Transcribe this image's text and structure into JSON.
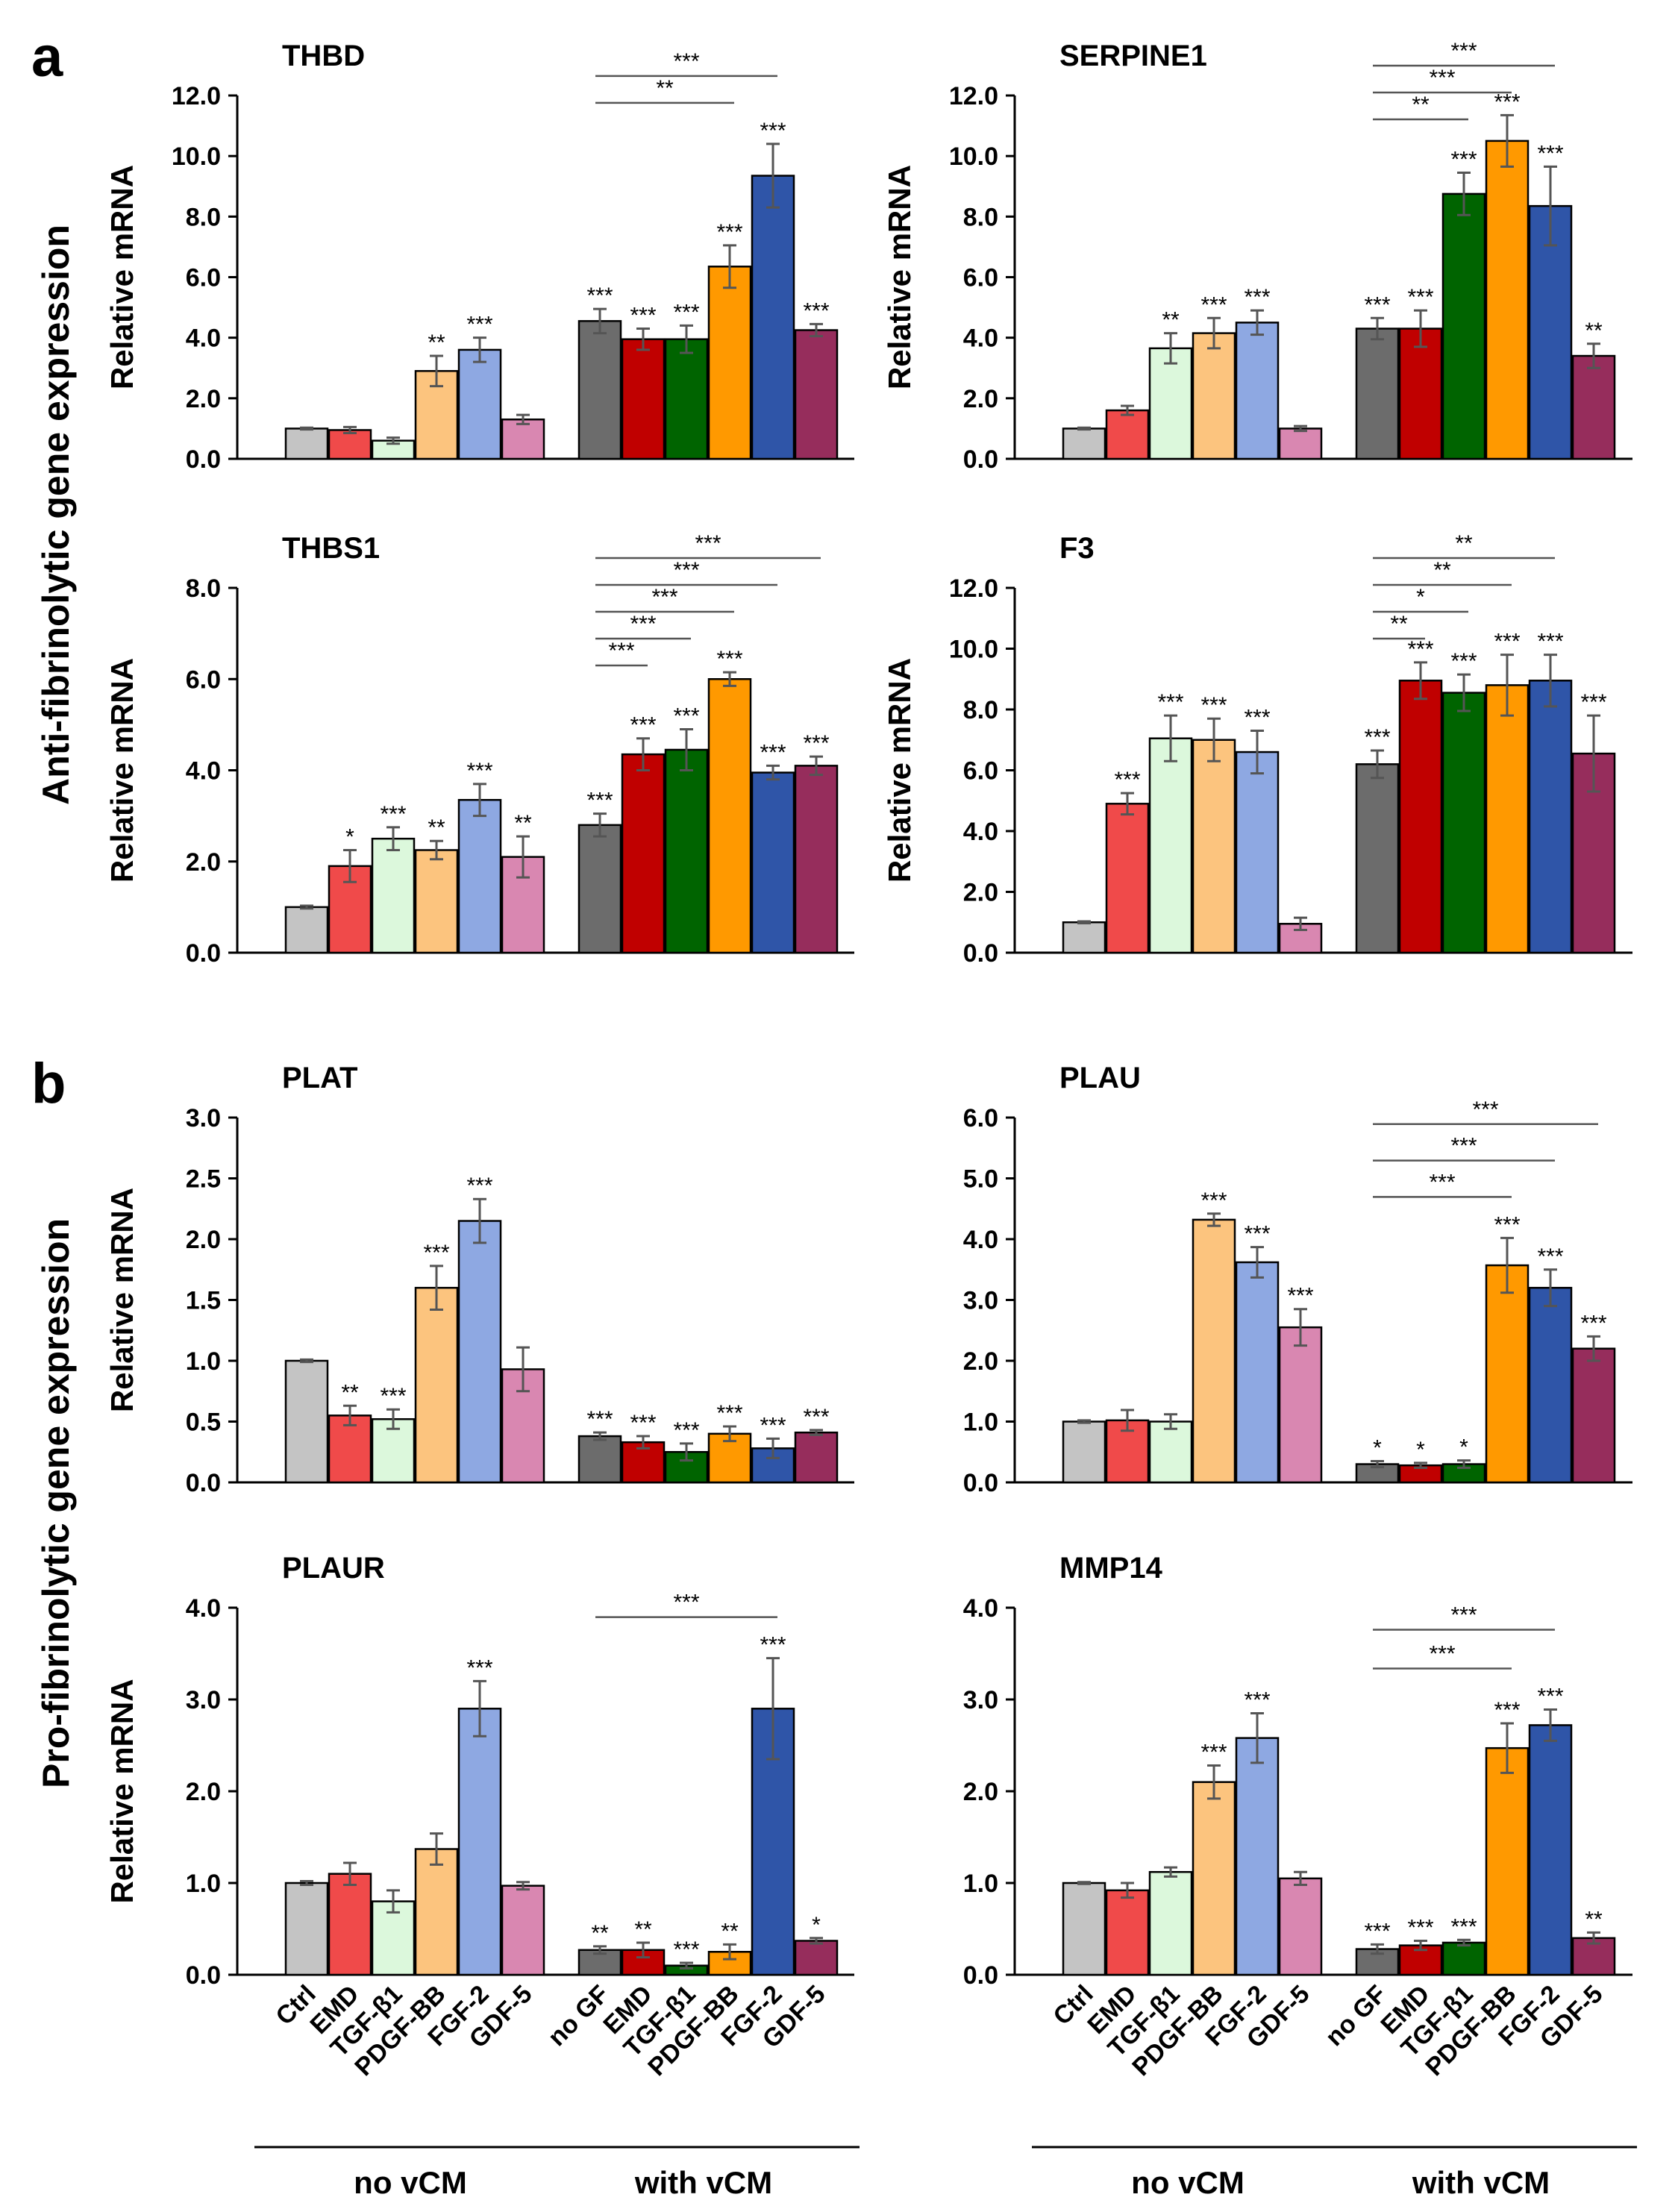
{
  "panel_labels": [
    "a",
    "b"
  ],
  "section_titles": [
    "Anti-fibrinolytic gene expression",
    "Pro-fibrinolytic gene expression"
  ],
  "x_axis": {
    "categories_no_vcm": [
      "Ctrl",
      "EMD",
      "TGF-β1",
      "PDGF-BB",
      "FGF-2",
      "GDF-5"
    ],
    "categories_with_vcm": [
      "no GF",
      "EMD",
      "TGF-β1",
      "PDGF-BB",
      "FGF-2",
      "GDF-5"
    ],
    "group_labels": [
      "no vCM",
      "with vCM"
    ]
  },
  "colors": {
    "no_vcm": [
      "#c4c4c4",
      "#f04a4a",
      "#dcf8dc",
      "#fcc47e",
      "#8ea8e2",
      "#d987b1"
    ],
    "with_vcm": [
      "#6c6c6c",
      "#c00000",
      "#006400",
      "#ff9900",
      "#2f55a8",
      "#962d5c"
    ],
    "error_bar": "#555555",
    "axis": "#000000"
  },
  "chart_data": [
    {
      "type": "bar",
      "title": "THBD",
      "ylabel": "Relative mRNA",
      "ylim": [
        0,
        12
      ],
      "yticks": [
        "0.0",
        "2.0",
        "4.0",
        "6.0",
        "8.0",
        "10.0",
        "12.0"
      ],
      "series": [
        {
          "name": "no vCM",
          "values": [
            1.0,
            0.95,
            0.6,
            2.9,
            3.6,
            1.3
          ],
          "errors": [
            0.03,
            0.1,
            0.1,
            0.5,
            0.4,
            0.15
          ],
          "labels": [
            "",
            "",
            "",
            "**",
            "***",
            ""
          ]
        },
        {
          "name": "with vCM",
          "values": [
            4.55,
            3.95,
            3.95,
            6.35,
            9.35,
            4.25
          ],
          "errors": [
            0.4,
            0.35,
            0.45,
            0.7,
            1.05,
            0.2
          ],
          "labels": [
            "***",
            "***",
            "***",
            "***",
            "***",
            "***"
          ]
        }
      ],
      "comparisons": [
        {
          "from": 0,
          "to": 4,
          "label": "***"
        },
        {
          "from": 0,
          "to": 3,
          "label": "**"
        }
      ]
    },
    {
      "type": "bar",
      "title": "SERPINE1",
      "ylabel": "Relative mRNA",
      "ylim": [
        0,
        12
      ],
      "yticks": [
        "0.0",
        "2.0",
        "4.0",
        "6.0",
        "8.0",
        "10.0",
        "12.0"
      ],
      "series": [
        {
          "name": "no vCM",
          "values": [
            1.0,
            1.6,
            3.65,
            4.15,
            4.5,
            1.0
          ],
          "errors": [
            0.03,
            0.15,
            0.5,
            0.5,
            0.4,
            0.08
          ],
          "labels": [
            "",
            "",
            "**",
            "***",
            "***",
            ""
          ]
        },
        {
          "name": "with vCM",
          "values": [
            4.3,
            4.3,
            8.75,
            10.5,
            8.35,
            3.4
          ],
          "errors": [
            0.35,
            0.6,
            0.7,
            0.85,
            1.3,
            0.4
          ],
          "labels": [
            "***",
            "***",
            "***",
            "***",
            "***",
            "**"
          ]
        }
      ],
      "comparisons": [
        {
          "from": 0,
          "to": 4,
          "label": "***"
        },
        {
          "from": 0,
          "to": 3,
          "label": "***"
        },
        {
          "from": 0,
          "to": 2,
          "label": "**"
        }
      ]
    },
    {
      "type": "bar",
      "title": "THBS1",
      "ylabel": "Relative mRNA",
      "ylim": [
        0,
        8
      ],
      "yticks": [
        "0.0",
        "2.0",
        "4.0",
        "6.0",
        "8.0"
      ],
      "series": [
        {
          "name": "no vCM",
          "values": [
            1.0,
            1.9,
            2.5,
            2.25,
            3.35,
            2.1
          ],
          "errors": [
            0.03,
            0.35,
            0.25,
            0.2,
            0.35,
            0.45
          ],
          "labels": [
            "",
            "*",
            "***",
            "**",
            "***",
            "**"
          ]
        },
        {
          "name": "with vCM",
          "values": [
            2.8,
            4.35,
            4.45,
            6.0,
            3.95,
            4.1
          ],
          "errors": [
            0.25,
            0.35,
            0.45,
            0.15,
            0.15,
            0.2
          ],
          "labels": [
            "***",
            "***",
            "***",
            "***",
            "***",
            "***"
          ]
        }
      ],
      "comparisons": [
        {
          "from": 0,
          "to": 5,
          "label": "***"
        },
        {
          "from": 0,
          "to": 4,
          "label": "***"
        },
        {
          "from": 0,
          "to": 3,
          "label": "***"
        },
        {
          "from": 0,
          "to": 2,
          "label": "***"
        },
        {
          "from": 0,
          "to": 1,
          "label": "***"
        }
      ]
    },
    {
      "type": "bar",
      "title": "F3",
      "ylabel": "Relative mRNA",
      "ylim": [
        0,
        12
      ],
      "yticks": [
        "0.0",
        "2.0",
        "4.0",
        "6.0",
        "8.0",
        "10.0",
        "12.0"
      ],
      "series": [
        {
          "name": "no vCM",
          "values": [
            1.0,
            4.9,
            7.05,
            7.0,
            6.6,
            0.95
          ],
          "errors": [
            0.03,
            0.35,
            0.75,
            0.7,
            0.7,
            0.2
          ],
          "labels": [
            "",
            "***",
            "***",
            "***",
            "***",
            ""
          ]
        },
        {
          "name": "with vCM",
          "values": [
            6.2,
            8.95,
            8.55,
            8.8,
            8.95,
            6.55
          ],
          "errors": [
            0.45,
            0.6,
            0.6,
            1.0,
            0.85,
            1.25
          ],
          "labels": [
            "***",
            "***",
            "***",
            "***",
            "***",
            "***"
          ]
        }
      ],
      "comparisons": [
        {
          "from": 0,
          "to": 4,
          "label": "**"
        },
        {
          "from": 0,
          "to": 3,
          "label": "**"
        },
        {
          "from": 0,
          "to": 2,
          "label": "*"
        },
        {
          "from": 0,
          "to": 1,
          "label": "**"
        }
      ]
    },
    {
      "type": "bar",
      "title": "PLAT",
      "ylabel": "Relative mRNA",
      "ylim": [
        0,
        3
      ],
      "yticks": [
        "0.0",
        "0.5",
        "1.0",
        "1.5",
        "2.0",
        "2.5",
        "3.0"
      ],
      "series": [
        {
          "name": "no vCM",
          "values": [
            1.0,
            0.55,
            0.52,
            1.6,
            2.15,
            0.93
          ],
          "errors": [
            0.01,
            0.08,
            0.08,
            0.18,
            0.18,
            0.18
          ],
          "labels": [
            "",
            "**",
            "***",
            "***",
            "***",
            ""
          ]
        },
        {
          "name": "with vCM",
          "values": [
            0.38,
            0.33,
            0.25,
            0.4,
            0.28,
            0.41
          ],
          "errors": [
            0.03,
            0.05,
            0.07,
            0.06,
            0.08,
            0.02
          ],
          "labels": [
            "***",
            "***",
            "***",
            "***",
            "***",
            "***"
          ]
        }
      ],
      "comparisons": []
    },
    {
      "type": "bar",
      "title": "PLAU",
      "ylabel": "",
      "ylim": [
        0,
        6
      ],
      "yticks": [
        "0.0",
        "1.0",
        "2.0",
        "3.0",
        "4.0",
        "5.0",
        "6.0"
      ],
      "series": [
        {
          "name": "no vCM",
          "values": [
            1.0,
            1.02,
            1.0,
            4.32,
            3.62,
            2.55
          ],
          "errors": [
            0.02,
            0.17,
            0.12,
            0.1,
            0.25,
            0.3
          ],
          "labels": [
            "",
            "",
            "",
            "***",
            "***",
            "***"
          ]
        },
        {
          "name": "with vCM",
          "values": [
            0.3,
            0.28,
            0.3,
            3.57,
            3.2,
            2.2
          ],
          "errors": [
            0.05,
            0.04,
            0.06,
            0.45,
            0.3,
            0.2
          ],
          "labels": [
            "*",
            "*",
            "*",
            "***",
            "***",
            "***"
          ]
        }
      ],
      "comparisons": [
        {
          "from": 0,
          "to": 5,
          "label": "***"
        },
        {
          "from": 0,
          "to": 4,
          "label": "***"
        },
        {
          "from": 0,
          "to": 3,
          "label": "***"
        }
      ]
    },
    {
      "type": "bar",
      "title": "PLAUR",
      "ylabel": "Relative mRNA",
      "ylim": [
        0,
        4
      ],
      "yticks": [
        "0.0",
        "1.0",
        "2.0",
        "3.0",
        "4.0"
      ],
      "series": [
        {
          "name": "no vCM",
          "values": [
            1.0,
            1.1,
            0.8,
            1.37,
            2.9,
            0.97
          ],
          "errors": [
            0.02,
            0.12,
            0.12,
            0.17,
            0.3,
            0.04
          ],
          "labels": [
            "",
            "",
            "",
            "",
            "***",
            ""
          ]
        },
        {
          "name": "with vCM",
          "values": [
            0.27,
            0.27,
            0.1,
            0.25,
            2.9,
            0.37
          ],
          "errors": [
            0.04,
            0.08,
            0.03,
            0.08,
            0.55,
            0.03
          ],
          "labels": [
            "**",
            "**",
            "***",
            "**",
            "***",
            "*"
          ]
        }
      ],
      "comparisons": [
        {
          "from": 0,
          "to": 4,
          "label": "***"
        }
      ]
    },
    {
      "type": "bar",
      "title": "MMP14",
      "ylabel": "",
      "ylim": [
        0,
        4
      ],
      "yticks": [
        "0.0",
        "1.0",
        "2.0",
        "3.0",
        "4.0"
      ],
      "series": [
        {
          "name": "no vCM",
          "values": [
            1.0,
            0.92,
            1.12,
            2.1,
            2.58,
            1.05
          ],
          "errors": [
            0.01,
            0.08,
            0.05,
            0.18,
            0.27,
            0.07
          ],
          "labels": [
            "",
            "",
            "",
            "***",
            "***",
            ""
          ]
        },
        {
          "name": "with vCM",
          "values": [
            0.28,
            0.32,
            0.35,
            2.47,
            2.72,
            0.4
          ],
          "errors": [
            0.05,
            0.05,
            0.03,
            0.27,
            0.17,
            0.06
          ],
          "labels": [
            "***",
            "***",
            "***",
            "***",
            "***",
            "**"
          ]
        }
      ],
      "comparisons": [
        {
          "from": 0,
          "to": 4,
          "label": "***"
        },
        {
          "from": 0,
          "to": 3,
          "label": "***"
        }
      ]
    }
  ]
}
